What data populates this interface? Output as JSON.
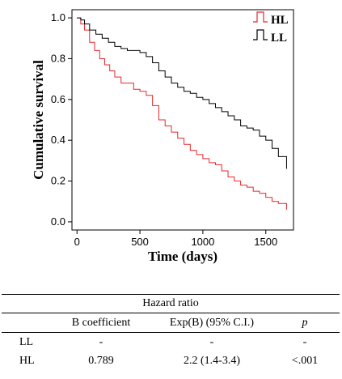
{
  "chart_data": {
    "type": "line",
    "xlabel": "Time (days)",
    "ylabel": "Cumulative survival",
    "xlim": [
      -40,
      1720
    ],
    "ylim": [
      -0.04,
      1.04
    ],
    "xticks": [
      0,
      500,
      1000,
      1500
    ],
    "yticks": [
      0.0,
      0.2,
      0.4,
      0.6,
      0.8,
      1.0
    ],
    "ytick_labels": [
      "0.0",
      "0.2",
      "0.4",
      "0.6",
      "0.8",
      "1.0"
    ],
    "grid": false,
    "legend_position": "top-right",
    "step": true,
    "series": [
      {
        "name": "HL",
        "color": "#e8262c",
        "x": [
          0,
          30,
          60,
          100,
          140,
          180,
          220,
          260,
          300,
          350,
          400,
          450,
          500,
          550,
          600,
          650,
          700,
          750,
          800,
          850,
          900,
          950,
          1000,
          1050,
          1100,
          1150,
          1200,
          1250,
          1300,
          1350,
          1400,
          1450,
          1500,
          1550,
          1600,
          1665
        ],
        "y": [
          1.0,
          0.97,
          0.94,
          0.88,
          0.84,
          0.8,
          0.77,
          0.74,
          0.71,
          0.68,
          0.68,
          0.65,
          0.64,
          0.62,
          0.57,
          0.5,
          0.47,
          0.44,
          0.41,
          0.38,
          0.35,
          0.33,
          0.31,
          0.29,
          0.28,
          0.25,
          0.22,
          0.2,
          0.18,
          0.17,
          0.15,
          0.14,
          0.12,
          0.1,
          0.09,
          0.06
        ]
      },
      {
        "name": "LL",
        "color": "#000000",
        "x": [
          0,
          30,
          60,
          100,
          150,
          200,
          250,
          300,
          350,
          400,
          450,
          500,
          550,
          600,
          650,
          700,
          750,
          800,
          850,
          900,
          950,
          1000,
          1050,
          1100,
          1150,
          1200,
          1250,
          1300,
          1350,
          1400,
          1450,
          1500,
          1550,
          1600,
          1665
        ],
        "y": [
          1.0,
          0.99,
          0.97,
          0.94,
          0.92,
          0.9,
          0.88,
          0.86,
          0.85,
          0.84,
          0.84,
          0.83,
          0.81,
          0.78,
          0.74,
          0.71,
          0.68,
          0.66,
          0.64,
          0.63,
          0.61,
          0.6,
          0.58,
          0.56,
          0.54,
          0.52,
          0.5,
          0.47,
          0.46,
          0.45,
          0.42,
          0.4,
          0.36,
          0.32,
          0.26
        ]
      }
    ]
  },
  "table": {
    "caption": "Hazard ratio",
    "headers": [
      "",
      "B coefficient",
      "Exp(B) (95% C.I.)",
      "p"
    ],
    "rows": [
      [
        "LL",
        "-",
        "-",
        "-"
      ],
      [
        "HL",
        "0.789",
        "2.2 (1.4-3.4)",
        "<.001"
      ]
    ]
  }
}
